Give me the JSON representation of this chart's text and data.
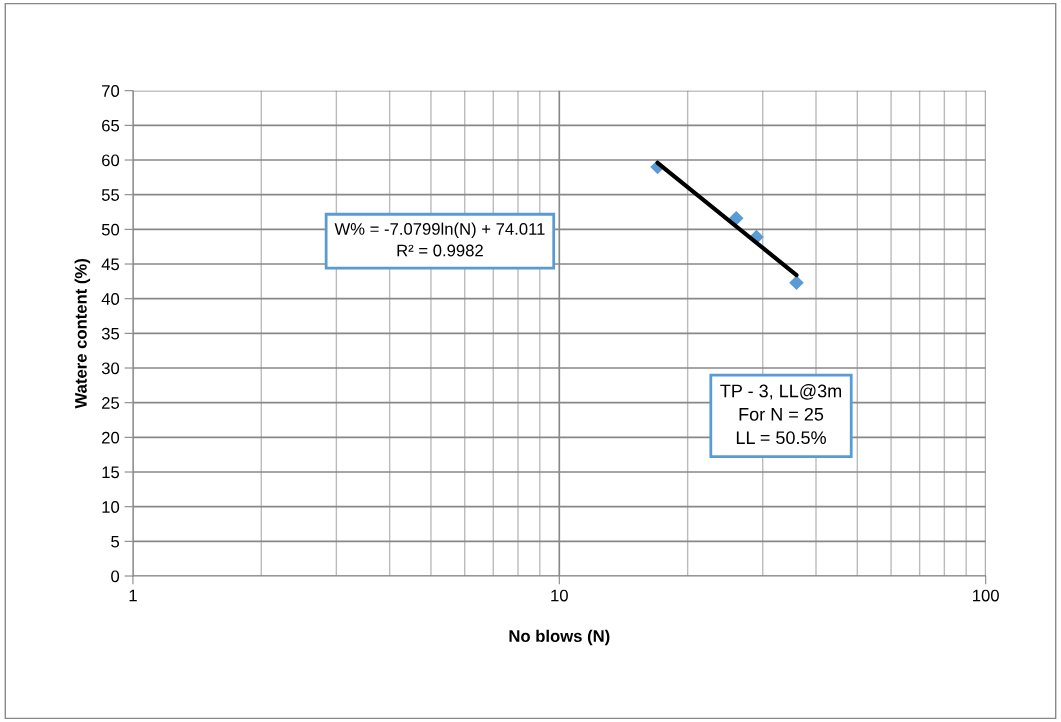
{
  "chart_data": {
    "type": "scatter",
    "xlabel": "No blows (N)",
    "ylabel": "Watere content (%)",
    "log": "x",
    "xlim": [
      1,
      100
    ],
    "xticks": [
      1,
      10,
      100
    ],
    "ylim": [
      0,
      70
    ],
    "yticks": [
      0,
      5,
      10,
      15,
      20,
      25,
      30,
      35,
      40,
      45,
      50,
      55,
      60,
      65,
      70
    ],
    "grid": true,
    "legend": false,
    "series": [
      {
        "marker": "diamond",
        "color": "#5b9bd5",
        "x": [
          17,
          26,
          29,
          36
        ],
        "values": [
          59.0,
          51.6,
          48.9,
          42.3
        ]
      },
      {
        "type": "line",
        "marker": "none",
        "color": "#000000",
        "x": [
          17,
          36
        ],
        "values": [
          59.6,
          43.4
        ]
      }
    ],
    "annotations": [
      "W% = -7.0799ln(N) + 74.011\nR² = 0.9982",
      "TP - 3, LL@3m\nFor N = 25\nLL = 50.5%"
    ]
  }
}
